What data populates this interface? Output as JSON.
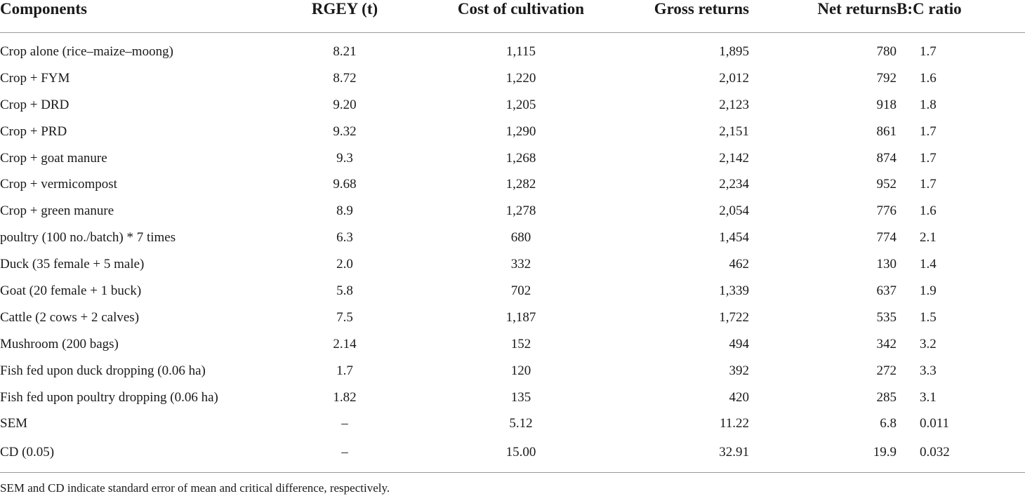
{
  "table": {
    "headers": [
      "Components",
      "RGEY (t)",
      "Cost of cultivation",
      "Gross returns",
      "Net returns",
      "B:C ratio"
    ],
    "rows": [
      [
        "Crop alone (rice–maize–moong)",
        "8.21",
        "1,115",
        "1,895",
        "780",
        "1.7"
      ],
      [
        "Crop + FYM",
        "8.72",
        "1,220",
        "2,012",
        "792",
        "1.6"
      ],
      [
        "Crop + DRD",
        "9.20",
        "1,205",
        "2,123",
        "918",
        "1.8"
      ],
      [
        "Crop + PRD",
        "9.32",
        "1,290",
        "2,151",
        "861",
        "1.7"
      ],
      [
        "Crop + goat manure",
        "9.3",
        "1,268",
        "2,142",
        "874",
        "1.7"
      ],
      [
        "Crop + vermicompost",
        "9.68",
        "1,282",
        "2,234",
        "952",
        "1.7"
      ],
      [
        "Crop + green manure",
        "8.9",
        "1,278",
        "2,054",
        "776",
        "1.6"
      ],
      [
        "poultry (100 no./batch) * 7 times",
        "6.3",
        "680",
        "1,454",
        "774",
        "2.1"
      ],
      [
        "Duck (35 female + 5 male)",
        "2.0",
        "332",
        "462",
        "130",
        "1.4"
      ],
      [
        "Goat (20 female + 1 buck)",
        "5.8",
        "702",
        "1,339",
        "637",
        "1.9"
      ],
      [
        "Cattle (2 cows + 2 calves)",
        "7.5",
        "1,187",
        "1,722",
        "535",
        "1.5"
      ],
      [
        "Mushroom (200 bags)",
        "2.14",
        "152",
        "494",
        "342",
        "3.2"
      ],
      [
        "Fish fed upon duck dropping (0.06 ha)",
        "1.7",
        "120",
        "392",
        "272",
        "3.3"
      ],
      [
        "Fish fed upon poultry dropping (0.06 ha)",
        "1.82",
        "135",
        "420",
        "285",
        "3.1"
      ],
      [
        "SEM",
        "–",
        "5.12",
        "11.22",
        "6.8",
        "0.011"
      ],
      [
        "CD (0.05)",
        "–",
        "15.00",
        "32.91",
        "19.9",
        "0.032"
      ]
    ]
  },
  "footnote": "SEM and CD indicate standard error of mean and critical difference, respectively."
}
